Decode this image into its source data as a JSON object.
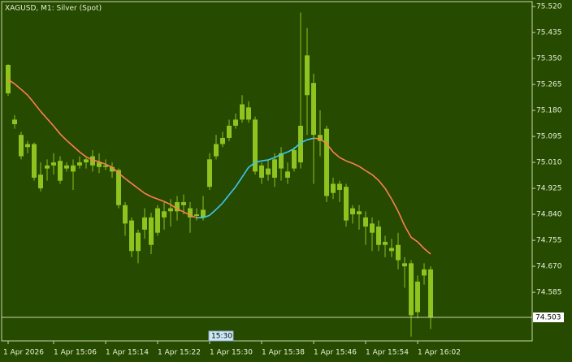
{
  "chart_data": {
    "type": "candlestick",
    "title": "XAGUSD, M1:  Silver (Spot)",
    "categories": [
      "1 Apr 2026",
      null,
      null,
      null,
      null,
      null,
      null,
      "1 Apr 15:06",
      null,
      null,
      null,
      null,
      null,
      null,
      null,
      "1 Apr 15:14",
      null,
      null,
      null,
      null,
      null,
      null,
      null,
      "1 Apr 15:22",
      null,
      null,
      null,
      null,
      null,
      null,
      null,
      "1 Apr 15:30",
      null,
      null,
      null,
      null,
      null,
      null,
      null,
      "1 Apr 15:38",
      null,
      null,
      null,
      null,
      null,
      null,
      null,
      "1 Apr 15:46",
      null,
      null,
      null,
      null,
      null,
      null,
      null,
      "1 Apr 15:54",
      null,
      null,
      null,
      null,
      null,
      null,
      null,
      "1 Apr 16:02",
      null,
      null
    ],
    "open": [
      75.329,
      75.15,
      75.1,
      75.06,
      75.07,
      74.97,
      75.0,
      75.01,
      75.015,
      74.99,
      74.98,
      75.0,
      75.01,
      75.03,
      75.01,
      75.0,
      74.995,
      74.985,
      74.87,
      74.82,
      74.78,
      74.79,
      74.83,
      74.78,
      74.85,
      74.86,
      74.85,
      74.88,
      74.86,
      74.84,
      74.83,
      74.93,
      75.03,
      75.07,
      75.09,
      75.13,
      75.15,
      75.19,
      75.15,
      75.0,
      74.99,
      74.96,
      75.04,
      74.98,
      74.99,
      75.01,
      75.23,
      75.27,
      75.1,
      75.12,
      74.91,
      74.94,
      74.93,
      74.84,
      74.85,
      74.83,
      74.81,
      74.8,
      74.75,
      74.72,
      74.74,
      74.67,
      74.68,
      74.52,
      74.64,
      74.66
    ],
    "high": [
      75.331,
      75.165,
      75.11,
      75.08,
      75.075,
      75.01,
      75.02,
      75.04,
      75.03,
      75.01,
      75.02,
      75.03,
      75.025,
      75.05,
      75.04,
      75.02,
      75.01,
      74.99,
      74.88,
      74.83,
      74.79,
      74.86,
      74.845,
      74.87,
      74.88,
      74.89,
      74.9,
      74.905,
      74.88,
      74.86,
      74.9,
      75.04,
      75.1,
      75.11,
      75.15,
      75.17,
      75.23,
      75.21,
      75.16,
      75.01,
      75.02,
      75.04,
      75.06,
      75.01,
      75.06,
      75.5,
      75.45,
      75.3,
      75.18,
      75.13,
      74.96,
      74.95,
      74.94,
      74.87,
      74.87,
      74.85,
      74.83,
      74.82,
      74.77,
      74.76,
      74.78,
      74.7,
      74.69,
      74.64,
      74.68,
      74.67
    ],
    "low": [
      75.228,
      75.12,
      75.02,
      75.04,
      74.95,
      74.915,
      74.95,
      74.97,
      74.94,
      74.98,
      74.92,
      74.99,
      74.99,
      74.98,
      74.975,
      74.985,
      74.96,
      74.86,
      74.77,
      74.7,
      74.68,
      74.76,
      74.71,
      74.77,
      74.79,
      74.8,
      74.82,
      74.84,
      74.78,
      74.82,
      74.82,
      74.92,
      75.02,
      75.06,
      75.08,
      75.12,
      75.14,
      75.14,
      74.97,
      74.94,
      74.95,
      74.93,
      74.95,
      74.94,
      74.98,
      74.99,
      75.1,
      74.94,
      75.03,
      74.88,
      74.89,
      74.88,
      74.8,
      74.81,
      74.79,
      74.74,
      74.72,
      74.72,
      74.7,
      74.7,
      74.66,
      74.6,
      74.44,
      74.5,
      74.61,
      74.465
    ],
    "close": [
      75.236,
      75.135,
      75.03,
      75.07,
      74.96,
      74.925,
      74.99,
      75.0,
      74.95,
      75.0,
      75.0,
      75.01,
      75.02,
      75.0,
      74.995,
      74.995,
      74.98,
      74.87,
      74.81,
      74.72,
      74.72,
      74.83,
      74.74,
      74.86,
      74.83,
      74.85,
      74.88,
      74.87,
      74.83,
      74.835,
      74.855,
      75.02,
      75.07,
      75.09,
      75.13,
      75.15,
      75.2,
      75.15,
      74.98,
      74.96,
      74.97,
      75.02,
      74.99,
      74.96,
      75.05,
      75.13,
      75.36,
      75.1,
      75.08,
      74.9,
      74.94,
      74.92,
      74.82,
      74.86,
      74.84,
      74.8,
      74.78,
      74.74,
      74.74,
      74.73,
      74.69,
      74.68,
      74.51,
      74.62,
      74.66,
      74.503
    ],
    "candle_color": "#8fc31f",
    "ma": {
      "values": [
        75.281,
        75.267,
        75.249,
        75.23,
        75.204,
        75.177,
        75.153,
        75.129,
        75.103,
        75.082,
        75.063,
        75.044,
        75.028,
        75.018,
        75.012,
        75.004,
        74.994,
        74.975,
        74.957,
        74.941,
        74.925,
        74.909,
        74.898,
        74.89,
        74.882,
        74.872,
        74.858,
        74.848,
        74.837,
        74.829,
        74.829,
        74.837,
        74.856,
        74.877,
        74.904,
        74.93,
        74.962,
        74.994,
        75.01,
        75.015,
        75.018,
        75.026,
        75.036,
        75.044,
        75.055,
        75.074,
        75.084,
        75.089,
        75.087,
        75.071,
        75.044,
        75.026,
        75.015,
        75.007,
        74.997,
        74.983,
        74.97,
        74.951,
        74.925,
        74.89,
        74.85,
        74.803,
        74.765,
        74.75,
        74.728,
        74.71
      ],
      "up_color": "#3ec8f0",
      "down_color": "#ff7f50"
    },
    "ylim": [
      74.426,
      75.536
    ],
    "yticks": [
      {
        "value": 75.52,
        "label": "75.520"
      },
      {
        "value": 75.435,
        "label": "75.435"
      },
      {
        "value": 75.35,
        "label": "75.350"
      },
      {
        "value": 75.265,
        "label": "75.265"
      },
      {
        "value": 75.18,
        "label": "75.180"
      },
      {
        "value": 75.095,
        "label": "75.095"
      },
      {
        "value": 75.01,
        "label": "75.010"
      },
      {
        "value": 74.925,
        "label": "74.925"
      },
      {
        "value": 74.84,
        "label": "74.840"
      },
      {
        "value": 74.755,
        "label": "74.755"
      },
      {
        "value": 74.67,
        "label": "74.670"
      },
      {
        "value": 74.585,
        "label": "74.585"
      }
    ],
    "last_price": {
      "value": 74.503,
      "label": "74.503"
    },
    "cursor_label": "15:30",
    "grid": false
  }
}
